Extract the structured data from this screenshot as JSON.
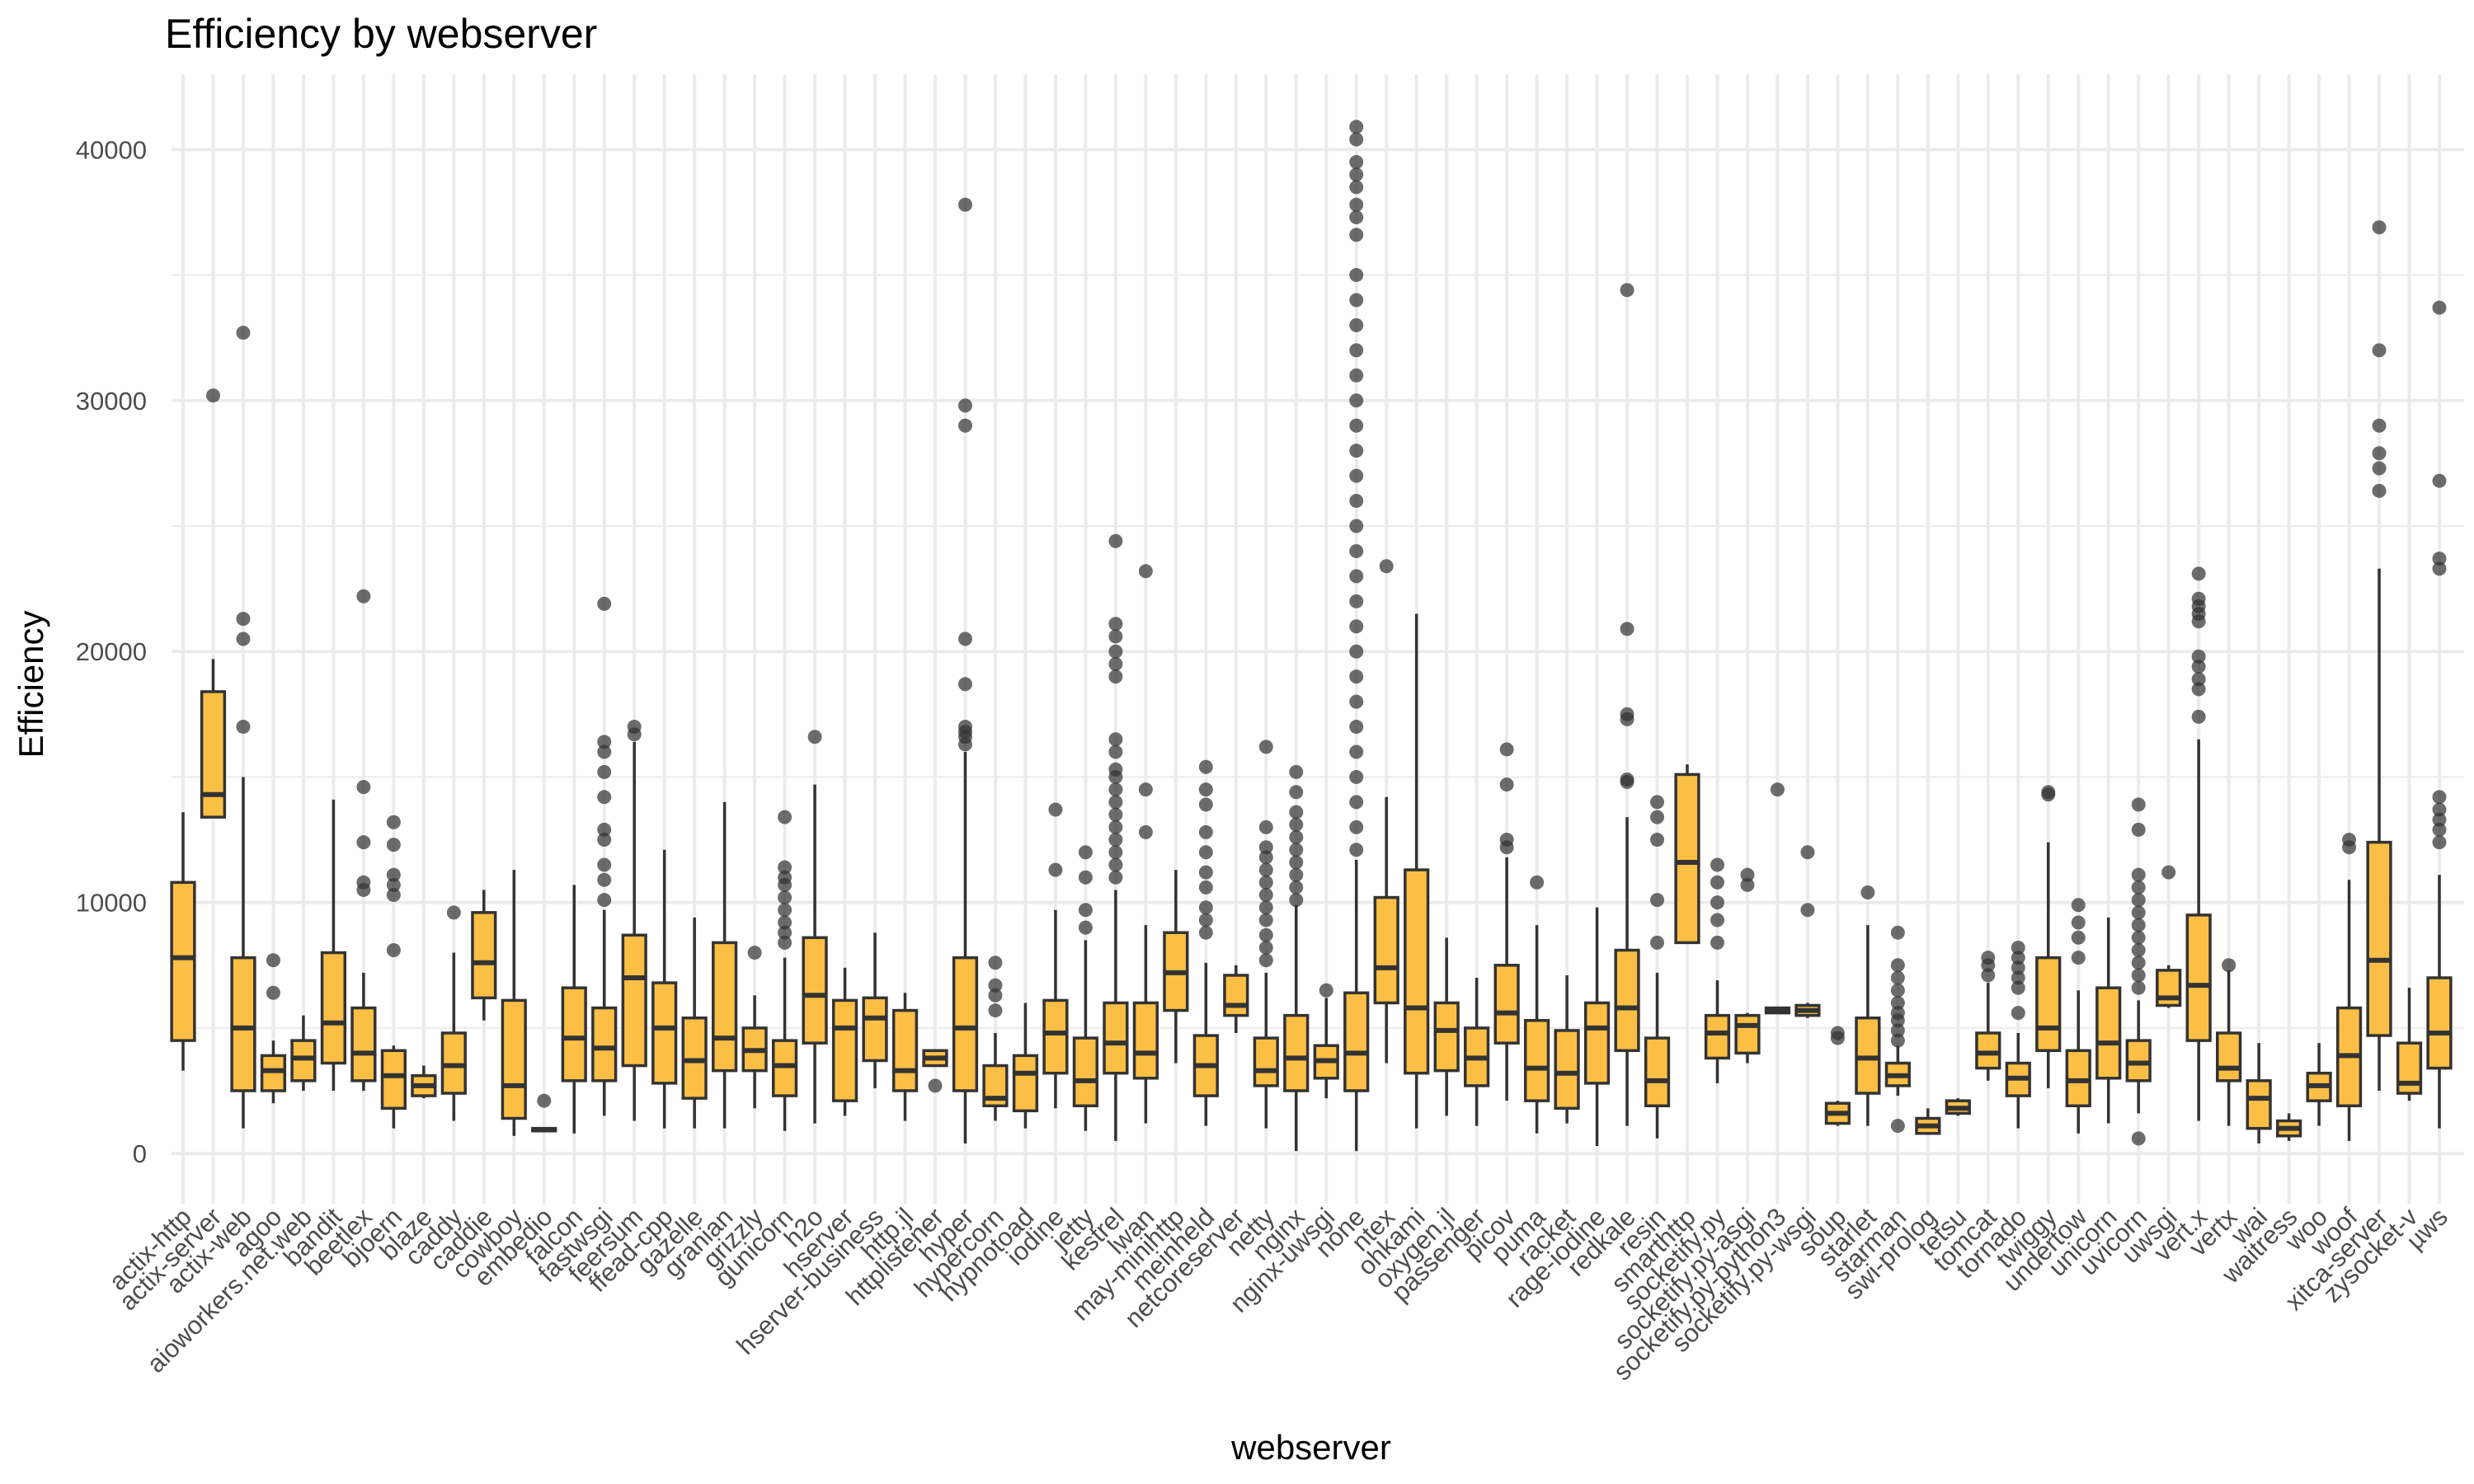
{
  "chart_data": {
    "type": "boxplot",
    "title": "Efficiency by webserver",
    "xlabel": "webserver",
    "ylabel": "Efficiency",
    "ylim": [
      -2000,
      43000
    ],
    "yticks": [
      0,
      10000,
      20000,
      30000,
      40000
    ],
    "grid": true,
    "legend": "none",
    "colors": {
      "box_fill": "#fbbf45",
      "box_stroke": "#333333",
      "outlier": "#333333",
      "grid": "#ebebeb"
    },
    "categories": [
      {
        "name": "actix-http",
        "lo": 3300,
        "q1": 4500,
        "med": 7800,
        "q3": 10800,
        "hi": 13600,
        "out": []
      },
      {
        "name": "actix-server",
        "lo": 13400,
        "q1": 13400,
        "med": 14300,
        "q3": 18400,
        "hi": 19700,
        "out": [
          30200
        ]
      },
      {
        "name": "actix-web",
        "lo": 1000,
        "q1": 2500,
        "med": 5000,
        "q3": 7800,
        "hi": 15000,
        "out": [
          17000,
          20500,
          21300,
          32700
        ]
      },
      {
        "name": "agoo",
        "lo": 2000,
        "q1": 2500,
        "med": 3300,
        "q3": 3900,
        "hi": 4500,
        "out": [
          6400,
          7700
        ]
      },
      {
        "name": "aioworkers.net.web",
        "lo": 2500,
        "q1": 2900,
        "med": 3800,
        "q3": 4500,
        "hi": 5500,
        "out": []
      },
      {
        "name": "bandit",
        "lo": 2500,
        "q1": 3600,
        "med": 5200,
        "q3": 8000,
        "hi": 14100,
        "out": []
      },
      {
        "name": "beetlex",
        "lo": 2500,
        "q1": 2900,
        "med": 4000,
        "q3": 5800,
        "hi": 7200,
        "out": [
          10500,
          10800,
          12400,
          14600,
          22200
        ]
      },
      {
        "name": "bjoern",
        "lo": 1000,
        "q1": 1800,
        "med": 3100,
        "q3": 4100,
        "hi": 4300,
        "out": [
          8100,
          10300,
          10700,
          11100,
          12300,
          13200
        ]
      },
      {
        "name": "blaze",
        "lo": 2200,
        "q1": 2300,
        "med": 2700,
        "q3": 3100,
        "hi": 3500,
        "out": []
      },
      {
        "name": "caddy",
        "lo": 1300,
        "q1": 2400,
        "med": 3500,
        "q3": 4800,
        "hi": 8000,
        "out": [
          9600
        ]
      },
      {
        "name": "caddie",
        "lo": 5300,
        "q1": 6200,
        "med": 7600,
        "q3": 9600,
        "hi": 10500,
        "out": []
      },
      {
        "name": "cowboy",
        "lo": 700,
        "q1": 1400,
        "med": 2700,
        "q3": 6100,
        "hi": 11300,
        "out": []
      },
      {
        "name": "embedio",
        "lo": 900,
        "q1": 900,
        "med": 950,
        "q3": 1000,
        "hi": 1000,
        "out": [
          2100
        ]
      },
      {
        "name": "falcon",
        "lo": 800,
        "q1": 2900,
        "med": 4600,
        "q3": 6600,
        "hi": 10700,
        "out": []
      },
      {
        "name": "fastwsgi",
        "lo": 1500,
        "q1": 2900,
        "med": 4200,
        "q3": 5800,
        "hi": 9700,
        "out": [
          10100,
          10900,
          11500,
          12500,
          12900,
          14200,
          15200,
          16000,
          16400,
          21900
        ]
      },
      {
        "name": "feersum",
        "lo": 1300,
        "q1": 3500,
        "med": 7000,
        "q3": 8700,
        "hi": 16400,
        "out": [
          16700,
          17000
        ]
      },
      {
        "name": "ffead-cpp",
        "lo": 1000,
        "q1": 2800,
        "med": 5000,
        "q3": 6800,
        "hi": 12100,
        "out": []
      },
      {
        "name": "gazelle",
        "lo": 1000,
        "q1": 2200,
        "med": 3700,
        "q3": 5400,
        "hi": 9400,
        "out": []
      },
      {
        "name": "granian",
        "lo": 1000,
        "q1": 3300,
        "med": 4600,
        "q3": 8400,
        "hi": 14000,
        "out": []
      },
      {
        "name": "grizzly",
        "lo": 1800,
        "q1": 3300,
        "med": 4100,
        "q3": 5000,
        "hi": 6300,
        "out": [
          8000
        ]
      },
      {
        "name": "gunicorn",
        "lo": 900,
        "q1": 2300,
        "med": 3500,
        "q3": 4500,
        "hi": 7800,
        "out": [
          8400,
          8800,
          9200,
          9700,
          10200,
          10700,
          11000,
          11400,
          13400
        ]
      },
      {
        "name": "h2o",
        "lo": 1200,
        "q1": 4400,
        "med": 6300,
        "q3": 8600,
        "hi": 14700,
        "out": [
          16600
        ]
      },
      {
        "name": "hserver",
        "lo": 1500,
        "q1": 2100,
        "med": 5000,
        "q3": 6100,
        "hi": 7400,
        "out": []
      },
      {
        "name": "hserver-business",
        "lo": 2600,
        "q1": 3700,
        "med": 5400,
        "q3": 6200,
        "hi": 8800,
        "out": []
      },
      {
        "name": "http.jl",
        "lo": 1300,
        "q1": 2500,
        "med": 3300,
        "q3": 5700,
        "hi": 6400,
        "out": []
      },
      {
        "name": "httplistener",
        "lo": 3500,
        "q1": 3500,
        "med": 3800,
        "q3": 4100,
        "hi": 4100,
        "out": [
          2700
        ]
      },
      {
        "name": "hyper",
        "lo": 400,
        "q1": 2500,
        "med": 5000,
        "q3": 7800,
        "hi": 16000,
        "out": [
          16300,
          16600,
          16800,
          17000,
          18700,
          20500,
          29000,
          29800,
          37800
        ]
      },
      {
        "name": "hypercorn",
        "lo": 1300,
        "q1": 1900,
        "med": 2200,
        "q3": 3500,
        "hi": 4800,
        "out": [
          5700,
          6300,
          6700,
          7600
        ]
      },
      {
        "name": "hypnotoad",
        "lo": 1000,
        "q1": 1700,
        "med": 3200,
        "q3": 3900,
        "hi": 6000,
        "out": []
      },
      {
        "name": "iodine",
        "lo": 1800,
        "q1": 3200,
        "med": 4800,
        "q3": 6100,
        "hi": 9700,
        "out": [
          11300,
          13700
        ]
      },
      {
        "name": "jetty",
        "lo": 900,
        "q1": 1900,
        "med": 2900,
        "q3": 4600,
        "hi": 8500,
        "out": [
          9000,
          9700,
          11000,
          12000
        ]
      },
      {
        "name": "kestrel",
        "lo": 500,
        "q1": 3200,
        "med": 4400,
        "q3": 6000,
        "hi": 10500,
        "out": [
          11000,
          11500,
          12000,
          12500,
          13000,
          13500,
          14000,
          14500,
          15000,
          15300,
          16000,
          16500,
          19000,
          19500,
          20000,
          20600,
          21100,
          24400
        ]
      },
      {
        "name": "lwan",
        "lo": 1200,
        "q1": 3000,
        "med": 4000,
        "q3": 6000,
        "hi": 9100,
        "out": [
          12800,
          14500,
          23200
        ]
      },
      {
        "name": "may-minihttp",
        "lo": 3600,
        "q1": 5700,
        "med": 7200,
        "q3": 8800,
        "hi": 11300,
        "out": []
      },
      {
        "name": "meinheld",
        "lo": 1100,
        "q1": 2300,
        "med": 3500,
        "q3": 4700,
        "hi": 7600,
        "out": [
          8800,
          9300,
          9800,
          10600,
          11200,
          12000,
          12800,
          13900,
          14500,
          15400
        ]
      },
      {
        "name": "netcoreserver",
        "lo": 4800,
        "q1": 5500,
        "med": 5900,
        "q3": 7100,
        "hi": 7500,
        "out": []
      },
      {
        "name": "netty",
        "lo": 1000,
        "q1": 2700,
        "med": 3300,
        "q3": 4600,
        "hi": 7200,
        "out": [
          7700,
          8200,
          8700,
          9300,
          9800,
          10300,
          10800,
          11300,
          11800,
          12200,
          13000,
          16200
        ]
      },
      {
        "name": "nginx",
        "lo": 100,
        "q1": 2500,
        "med": 3800,
        "q3": 5500,
        "hi": 9900,
        "out": [
          10100,
          10600,
          11100,
          11600,
          12100,
          12600,
          13100,
          13600,
          14400,
          15200
        ]
      },
      {
        "name": "nginx-uwsgi",
        "lo": 2200,
        "q1": 3000,
        "med": 3700,
        "q3": 4300,
        "hi": 6200,
        "out": [
          6500
        ]
      },
      {
        "name": "none",
        "lo": 100,
        "q1": 2500,
        "med": 4000,
        "q3": 6400,
        "hi": 11700,
        "out": [
          12100,
          13000,
          14000,
          15000,
          16000,
          17000,
          18000,
          19000,
          20000,
          21000,
          22000,
          23000,
          24000,
          25000,
          26000,
          27000,
          28000,
          29000,
          30000,
          31000,
          32000,
          33000,
          34000,
          35000,
          36600,
          37300,
          37800,
          38500,
          39000,
          39500,
          40400,
          40900
        ]
      },
      {
        "name": "ntex",
        "lo": 3600,
        "q1": 6000,
        "med": 7400,
        "q3": 10200,
        "hi": 14200,
        "out": [
          23400
        ]
      },
      {
        "name": "ohkami",
        "lo": 1000,
        "q1": 3200,
        "med": 5800,
        "q3": 11300,
        "hi": 21500,
        "out": []
      },
      {
        "name": "oxygen.jl",
        "lo": 1500,
        "q1": 3300,
        "med": 4900,
        "q3": 6000,
        "hi": 8600,
        "out": []
      },
      {
        "name": "passenger",
        "lo": 1100,
        "q1": 2700,
        "med": 3800,
        "q3": 5000,
        "hi": 7000,
        "out": []
      },
      {
        "name": "picov",
        "lo": 2100,
        "q1": 4400,
        "med": 5600,
        "q3": 7500,
        "hi": 11800,
        "out": [
          12200,
          12500,
          14700,
          16100
        ]
      },
      {
        "name": "puma",
        "lo": 800,
        "q1": 2100,
        "med": 3400,
        "q3": 5300,
        "hi": 9100,
        "out": [
          10800
        ]
      },
      {
        "name": "racket",
        "lo": 1200,
        "q1": 1800,
        "med": 3200,
        "q3": 4900,
        "hi": 7100,
        "out": []
      },
      {
        "name": "rage-iodine",
        "lo": 300,
        "q1": 2800,
        "med": 5000,
        "q3": 6000,
        "hi": 9800,
        "out": []
      },
      {
        "name": "redkale",
        "lo": 1100,
        "q1": 4100,
        "med": 5800,
        "q3": 8100,
        "hi": 13400,
        "out": [
          14800,
          14900,
          17300,
          17500,
          20900,
          34400
        ]
      },
      {
        "name": "resin",
        "lo": 600,
        "q1": 1900,
        "med": 2900,
        "q3": 4600,
        "hi": 7200,
        "out": [
          8400,
          10100,
          12500,
          13400,
          14000
        ]
      },
      {
        "name": "smarthttp",
        "lo": 8400,
        "q1": 8400,
        "med": 11600,
        "q3": 15100,
        "hi": 15500,
        "out": []
      },
      {
        "name": "socketify.py",
        "lo": 2800,
        "q1": 3800,
        "med": 4800,
        "q3": 5500,
        "hi": 6900,
        "out": [
          8400,
          9300,
          10000,
          10800,
          11500
        ]
      },
      {
        "name": "socketify.py-asgi",
        "lo": 3600,
        "q1": 4000,
        "med": 5100,
        "q3": 5500,
        "hi": 5600,
        "out": [
          10700,
          11100
        ]
      },
      {
        "name": "socketify.py-python3",
        "lo": 5600,
        "q1": 5600,
        "med": 5700,
        "q3": 5800,
        "hi": 5800,
        "out": [
          14500
        ]
      },
      {
        "name": "socketify.py-wsgi",
        "lo": 5400,
        "q1": 5500,
        "med": 5700,
        "q3": 5900,
        "hi": 6000,
        "out": [
          9700,
          12000
        ]
      },
      {
        "name": "soup",
        "lo": 1100,
        "q1": 1200,
        "med": 1600,
        "q3": 2000,
        "hi": 2100,
        "out": [
          4600,
          4800
        ]
      },
      {
        "name": "starlet",
        "lo": 1100,
        "q1": 2400,
        "med": 3800,
        "q3": 5400,
        "hi": 9100,
        "out": [
          10400
        ]
      },
      {
        "name": "starman",
        "lo": 2300,
        "q1": 2700,
        "med": 3100,
        "q3": 3600,
        "hi": 4300,
        "out": [
          1100,
          4500,
          4900,
          5300,
          5600,
          6000,
          6500,
          7000,
          7500,
          8800
        ]
      },
      {
        "name": "swi-prolog",
        "lo": 800,
        "q1": 800,
        "med": 1100,
        "q3": 1400,
        "hi": 1800,
        "out": []
      },
      {
        "name": "tetsu",
        "lo": 1500,
        "q1": 1600,
        "med": 1800,
        "q3": 2100,
        "hi": 2200,
        "out": []
      },
      {
        "name": "tomcat",
        "lo": 2900,
        "q1": 3400,
        "med": 4000,
        "q3": 4800,
        "hi": 6800,
        "out": [
          7100,
          7500,
          7800
        ]
      },
      {
        "name": "tornado",
        "lo": 1000,
        "q1": 2300,
        "med": 3000,
        "q3": 3600,
        "hi": 4800,
        "out": [
          5600,
          6600,
          7000,
          7400,
          7800,
          8200
        ]
      },
      {
        "name": "twiggy",
        "lo": 2600,
        "q1": 4100,
        "med": 5000,
        "q3": 7800,
        "hi": 12400,
        "out": [
          14300,
          14400
        ]
      },
      {
        "name": "undertow",
        "lo": 800,
        "q1": 1900,
        "med": 2900,
        "q3": 4100,
        "hi": 6500,
        "out": [
          7800,
          8600,
          9200,
          9900
        ]
      },
      {
        "name": "unicorn",
        "lo": 1200,
        "q1": 3000,
        "med": 4400,
        "q3": 6600,
        "hi": 9400,
        "out": []
      },
      {
        "name": "uvicorn",
        "lo": 1600,
        "q1": 2900,
        "med": 3600,
        "q3": 4500,
        "hi": 6100,
        "out": [
          600,
          6600,
          7100,
          7600,
          8100,
          8600,
          9100,
          9600,
          10100,
          10600,
          11100,
          12900,
          13900
        ]
      },
      {
        "name": "uwsgi",
        "lo": 5800,
        "q1": 5900,
        "med": 6200,
        "q3": 7300,
        "hi": 7500,
        "out": [
          11200
        ]
      },
      {
        "name": "vert.x",
        "lo": 1300,
        "q1": 4500,
        "med": 6700,
        "q3": 9500,
        "hi": 16500,
        "out": [
          17400,
          18500,
          18900,
          19400,
          19800,
          21200,
          21500,
          21800,
          22100,
          23100
        ]
      },
      {
        "name": "vertx",
        "lo": 1100,
        "q1": 2900,
        "med": 3400,
        "q3": 4800,
        "hi": 7300,
        "out": [
          7500
        ]
      },
      {
        "name": "wai",
        "lo": 400,
        "q1": 1000,
        "med": 2200,
        "q3": 2900,
        "hi": 4400,
        "out": []
      },
      {
        "name": "waitress",
        "lo": 500,
        "q1": 700,
        "med": 1000,
        "q3": 1300,
        "hi": 1600,
        "out": []
      },
      {
        "name": "woo",
        "lo": 1100,
        "q1": 2100,
        "med": 2700,
        "q3": 3200,
        "hi": 4400,
        "out": []
      },
      {
        "name": "woof",
        "lo": 500,
        "q1": 1900,
        "med": 3900,
        "q3": 5800,
        "hi": 10900,
        "out": [
          12200,
          12500
        ]
      },
      {
        "name": "xitca-server",
        "lo": 2500,
        "q1": 4700,
        "med": 7700,
        "q3": 12400,
        "hi": 23300,
        "out": [
          26400,
          27300,
          27900,
          29000,
          32000,
          36900
        ]
      },
      {
        "name": "zysocket-v",
        "lo": 2100,
        "q1": 2400,
        "med": 2800,
        "q3": 4400,
        "hi": 6600,
        "out": []
      },
      {
        "name": "µws",
        "lo": 1000,
        "q1": 3400,
        "med": 4800,
        "q3": 7000,
        "hi": 11100,
        "out": [
          12400,
          12900,
          13300,
          13700,
          14200,
          23300,
          23700,
          26800,
          33700
        ]
      }
    ]
  }
}
